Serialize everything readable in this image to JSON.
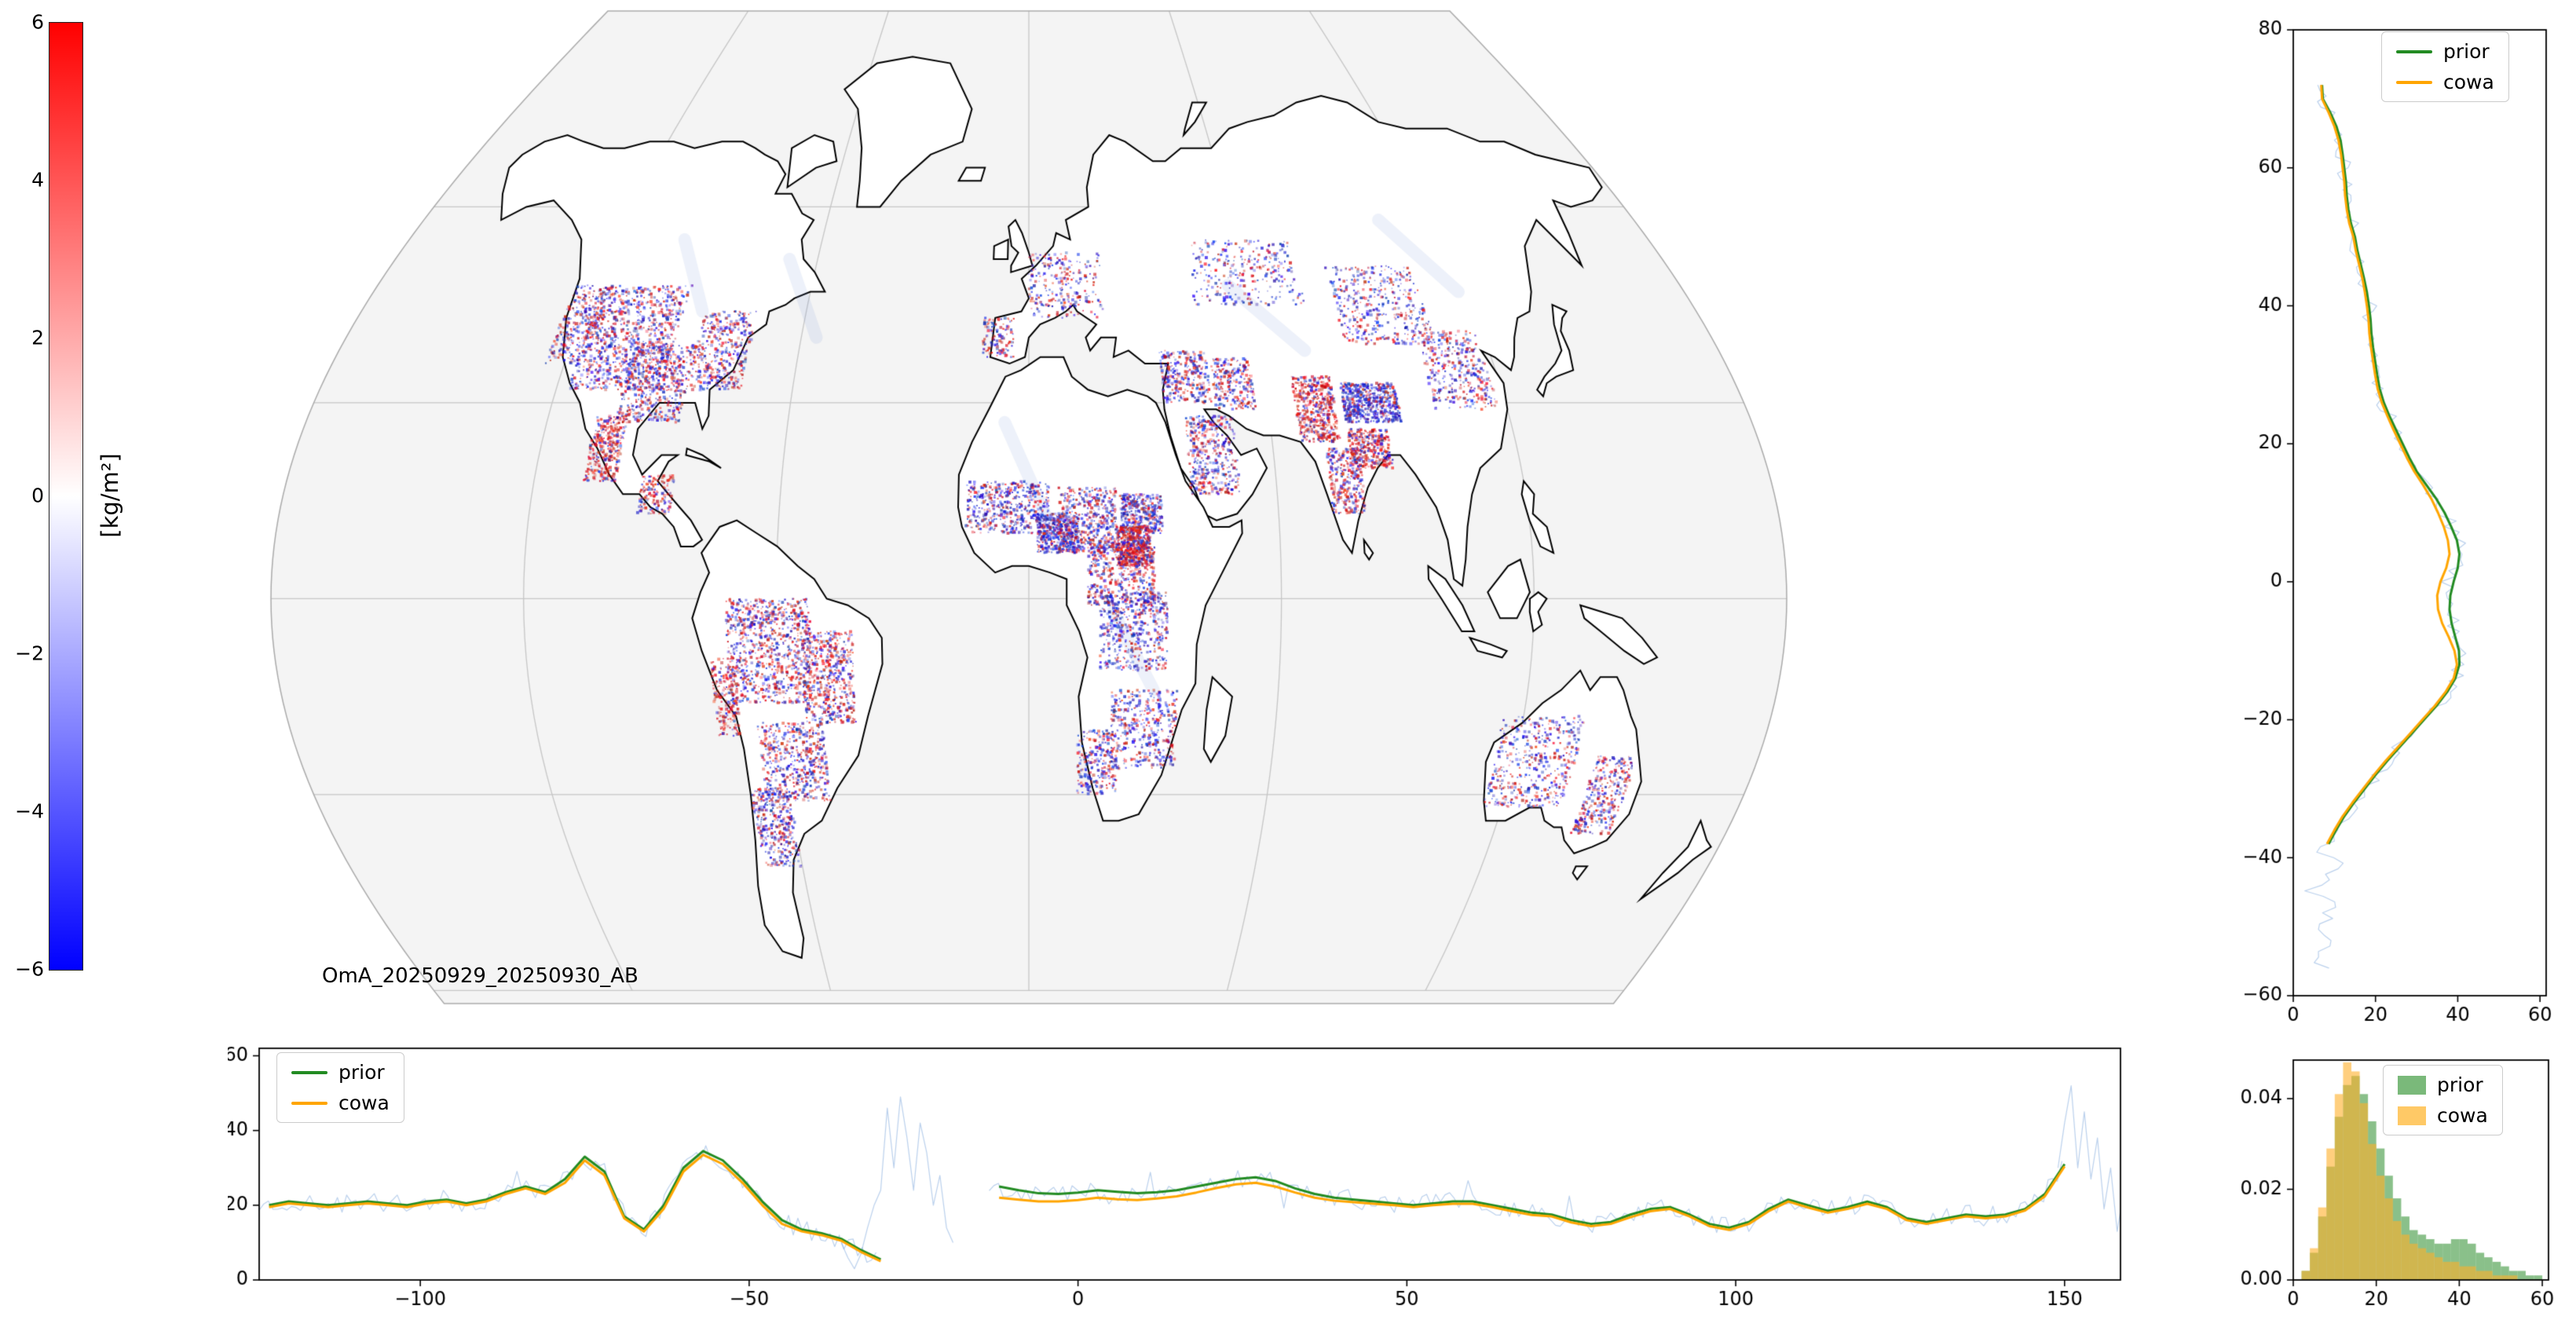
{
  "colors": {
    "prior": "#228b22",
    "cowa": "#ffa500",
    "obs": "#9bbfe0",
    "map_positive": "#ff0000",
    "map_zero": "#ffffff",
    "map_negative": "#0000ff"
  },
  "legend_labels": {
    "prior": "prior",
    "cowa": "cowa"
  },
  "colorbar": {
    "label": "[kg/m²]",
    "tick_labels": [
      "6",
      "4",
      "2",
      "0",
      "−2",
      "−4",
      "−6"
    ],
    "vmin": -6,
    "vmax": 6
  },
  "map": {
    "annotation": "OmA_20250929_20250930_AB"
  },
  "chart_data": [
    {
      "id": "map",
      "type": "heatmap",
      "title": "OmA_20250929_20250930_AB",
      "colorbar_label": "[kg/m²]",
      "vmin": -6,
      "vmax": 6,
      "colorbar_ticks": [
        6,
        4,
        2,
        0,
        -2,
        -4,
        -6
      ],
      "projection": "pseudo-robinson world map",
      "legend_position": "colorbar left"
    },
    {
      "id": "zonal_profile",
      "type": "line",
      "xlim": [
        0,
        61.5
      ],
      "ylim": [
        -60,
        80
      ],
      "xticks": [
        0,
        20,
        40,
        60
      ],
      "xtick_labels": [
        "0",
        "20",
        "40",
        "60"
      ],
      "yticks": [
        80,
        60,
        40,
        20,
        0,
        -20,
        -40,
        -60
      ],
      "ytick_labels": [
        "80",
        "60",
        "40",
        "20",
        "0",
        "−20",
        "−40",
        "−60"
      ],
      "legend": [
        "prior",
        "cowa"
      ],
      "legend_position": "upper right",
      "series": [
        {
          "name": "prior",
          "lats": [
            72,
            70,
            68,
            66,
            64,
            62,
            60,
            58,
            56,
            54,
            52,
            50,
            48,
            46,
            44,
            42,
            40,
            38,
            36,
            34,
            32,
            30,
            28,
            26,
            24,
            22,
            20,
            18,
            16,
            14,
            12,
            10,
            8,
            6,
            4,
            2,
            0,
            -2,
            -4,
            -6,
            -8,
            -10,
            -12,
            -14,
            -16,
            -18,
            -20,
            -22,
            -24,
            -26,
            -28,
            -30,
            -32,
            -34,
            -36,
            -38
          ],
          "values": [
            7,
            7.2,
            9,
            10.5,
            11.5,
            12,
            12.4,
            12.8,
            13,
            13.4,
            14,
            15,
            15.6,
            16.4,
            17.2,
            17.9,
            18.4,
            18.8,
            19,
            19.4,
            19.9,
            20.4,
            21,
            22,
            23.4,
            25,
            26.6,
            28.2,
            30,
            32.4,
            34.8,
            36.8,
            38.4,
            39.8,
            40.4,
            40,
            39,
            38.2,
            38,
            38.5,
            39.4,
            40.3,
            40.4,
            39.4,
            37.4,
            34.8,
            31.8,
            28.8,
            25.8,
            22.8,
            20,
            17.4,
            14.8,
            12.4,
            10.4,
            8.6
          ]
        },
        {
          "name": "cowa",
          "lats": [
            72,
            70,
            68,
            66,
            64,
            62,
            60,
            58,
            56,
            54,
            52,
            50,
            48,
            46,
            44,
            42,
            40,
            38,
            36,
            34,
            32,
            30,
            28,
            26,
            24,
            22,
            20,
            18,
            16,
            14,
            12,
            10,
            8,
            6,
            4,
            2,
            0,
            -2,
            -4,
            -6,
            -8,
            -10,
            -12,
            -14,
            -16,
            -18,
            -20,
            -22,
            -24,
            -26,
            -28,
            -30,
            -32,
            -34,
            -36,
            -38
          ],
          "values": [
            6.8,
            7,
            8.6,
            10,
            11,
            11.6,
            12,
            12.4,
            12.6,
            13,
            13.6,
            14.6,
            15.2,
            16,
            16.8,
            17.4,
            17.9,
            18.3,
            18.5,
            18.9,
            19.4,
            19.9,
            20.5,
            21.5,
            22.9,
            24.4,
            26,
            27.6,
            29.4,
            31.6,
            33.6,
            35.2,
            36.6,
            37.6,
            38,
            37.2,
            35.8,
            35,
            35.2,
            36.2,
            37.8,
            39.2,
            39.8,
            39,
            37,
            34.4,
            31.4,
            28.4,
            25.4,
            22.4,
            19.6,
            17,
            14.4,
            12,
            10,
            8.2
          ]
        }
      ],
      "obs_noise": {
        "amplitude": 2.0,
        "step": 0.8,
        "range": [
          -56,
          72
        ],
        "tail_lat": -38,
        "tail_value": 8,
        "seed": 11
      }
    },
    {
      "id": "meridional_profile",
      "type": "line",
      "xlim": [
        -124.5,
        158.5
      ],
      "ylim": [
        0,
        62
      ],
      "xticks": [
        -100,
        -50,
        0,
        50,
        100,
        150
      ],
      "xtick_labels": [
        "−100",
        "−50",
        "0",
        "50",
        "100",
        "150"
      ],
      "yticks": [
        0,
        20,
        40,
        60
      ],
      "ytick_labels": [
        "0",
        "20",
        "40",
        "60"
      ],
      "legend": [
        "prior",
        "cowa"
      ],
      "legend_position": "upper left",
      "segments": [
        {
          "lons": [
            -123,
            -120,
            -117,
            -114,
            -111,
            -108,
            -105,
            -102,
            -99,
            -96,
            -93,
            -90,
            -87,
            -84,
            -81,
            -78,
            -75,
            -72,
            -69,
            -66,
            -63,
            -60,
            -57,
            -54,
            -51,
            -48,
            -45,
            -42,
            -39,
            -36,
            -33,
            -30
          ],
          "prior": [
            20,
            21,
            20.5,
            20,
            20.5,
            21,
            20.5,
            20,
            21,
            21.5,
            20.5,
            21.5,
            23.5,
            25,
            23.5,
            27,
            33,
            29,
            17,
            13.5,
            20,
            30,
            34.5,
            32,
            27,
            21,
            16,
            13.5,
            12.5,
            11,
            8,
            5.5
          ],
          "cowa": [
            19.5,
            20.5,
            20,
            19.5,
            20,
            20.5,
            20,
            19.5,
            20.5,
            21,
            20,
            21,
            23,
            24.5,
            23,
            26,
            32,
            28,
            16.5,
            13,
            19,
            29,
            33.5,
            31,
            26,
            20,
            15,
            13,
            12,
            10.5,
            7.5,
            5
          ]
        },
        {
          "lons": [
            -12,
            -9,
            -6,
            -3,
            0,
            3,
            6,
            9,
            12,
            15,
            18,
            21,
            24,
            27,
            30,
            33,
            36,
            39,
            42,
            45,
            48,
            51,
            54,
            57,
            60,
            63,
            66,
            69,
            72,
            75,
            78,
            81,
            84,
            87,
            90,
            93,
            96,
            99,
            102,
            105,
            108,
            111,
            114,
            117,
            120,
            123,
            126,
            129,
            132,
            135,
            138,
            141,
            144,
            147,
            150
          ],
          "prior": [
            25,
            24,
            23.2,
            23,
            23.4,
            24,
            23.6,
            23.2,
            23.5,
            24,
            25,
            26,
            27,
            27.5,
            26.5,
            24.5,
            23,
            22,
            21.5,
            21,
            20.5,
            20,
            20.5,
            21,
            21,
            20,
            19,
            18,
            17.5,
            16,
            15,
            15.5,
            17.5,
            19,
            19.5,
            17.5,
            15,
            14,
            15.5,
            19,
            21.5,
            20,
            18.5,
            19.5,
            21,
            19.5,
            16.5,
            15.5,
            16.5,
            17.5,
            17,
            17.5,
            19,
            23,
            31
          ],
          "cowa": [
            22,
            21.5,
            21,
            21,
            21.4,
            22,
            21.6,
            21.4,
            21.8,
            22.4,
            23.4,
            24.6,
            25.6,
            26,
            25,
            23.4,
            22,
            21.2,
            20.8,
            20.4,
            20,
            19.5,
            20,
            20.4,
            20.4,
            19.5,
            18.4,
            17.4,
            17,
            15.4,
            14.4,
            15,
            16.8,
            18.4,
            19,
            17,
            14.4,
            13.4,
            15,
            18.4,
            21,
            19.4,
            18,
            19,
            20.4,
            19,
            16,
            15,
            16,
            17,
            16.5,
            17,
            18.6,
            22.4,
            30.4
          ]
        }
      ],
      "obs_noise": {
        "amplitude": 2.6,
        "step": 0.7,
        "seed": 23,
        "extra_segments": [
          {
            "lons": [
              -36,
              -35,
              -34,
              -33,
              -32,
              -31,
              -30,
              -29,
              -28,
              -27,
              -26,
              -25,
              -24,
              -23,
              -22,
              -21,
              -20,
              -19
            ],
            "values": [
              10,
              6,
              3,
              7,
              14,
              20,
              24,
              46,
              30,
              49,
              38,
              24,
              42,
              34,
              20,
              28,
              14,
              10
            ]
          },
          {
            "lons": [
              149,
              150,
              151,
              152,
              153,
              154,
              155,
              156,
              157,
              158,
              159,
              160,
              161,
              162,
              163,
              164
            ],
            "values": [
              30,
              42,
              52,
              30,
              45,
              27,
              38,
              19,
              30,
              13,
              24,
              10,
              20,
              28,
              12,
              22
            ]
          }
        ]
      }
    },
    {
      "id": "histogram",
      "type": "bar",
      "xlim": [
        0,
        61.5
      ],
      "ylim": [
        0,
        0.0485
      ],
      "xticks": [
        0,
        20,
        40,
        60
      ],
      "xtick_labels": [
        "0",
        "20",
        "40",
        "60"
      ],
      "yticks": [
        0,
        0.02,
        0.04
      ],
      "ytick_labels": [
        "0.00",
        "0.02",
        "0.04"
      ],
      "bin_start": 0,
      "bin_width": 2,
      "legend": [
        "prior",
        "cowa"
      ],
      "legend_position": "upper right",
      "series": [
        {
          "name": "prior",
          "values": [
            0.0,
            0.002,
            0.006,
            0.014,
            0.025,
            0.036,
            0.043,
            0.045,
            0.041,
            0.035,
            0.029,
            0.023,
            0.018,
            0.014,
            0.011,
            0.01,
            0.009,
            0.008,
            0.008,
            0.009,
            0.009,
            0.008,
            0.006,
            0.005,
            0.004,
            0.003,
            0.002,
            0.002,
            0.001,
            0.001
          ]
        },
        {
          "name": "cowa",
          "values": [
            0.0,
            0.002,
            0.007,
            0.016,
            0.029,
            0.041,
            0.048,
            0.046,
            0.039,
            0.03,
            0.023,
            0.018,
            0.013,
            0.01,
            0.008,
            0.007,
            0.006,
            0.005,
            0.004,
            0.004,
            0.003,
            0.003,
            0.002,
            0.002,
            0.001,
            0.001,
            0.001,
            0.0,
            0.0,
            0.0
          ]
        }
      ]
    }
  ]
}
